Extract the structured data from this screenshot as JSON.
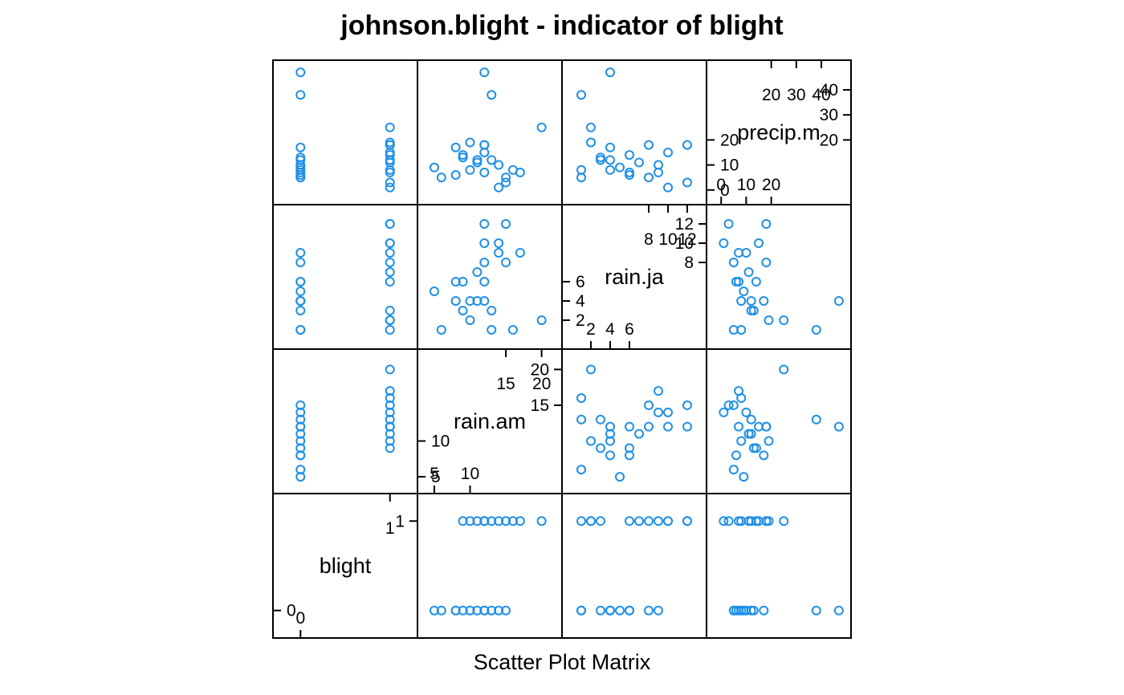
{
  "chart_data": {
    "type": "scatter",
    "title": "johnson.blight - indicator of blight",
    "xlabel": "Scatter Plot Matrix",
    "variables": [
      {
        "name": "blight",
        "label": "blight",
        "range": [
          -0.2,
          1.2
        ],
        "ticks": {
          "low": [
            "0"
          ],
          "high": [
            "1"
          ]
        }
      },
      {
        "name": "rain.am",
        "label": "rain.am",
        "range": [
          4,
          21.5
        ],
        "ticks": {
          "low": [
            "5",
            "10"
          ],
          "high": [
            "15",
            "20"
          ]
        }
      },
      {
        "name": "rain.ja",
        "label": "rain.ja",
        "range": [
          0,
          13
        ],
        "ticks": {
          "low": [
            "2",
            "4",
            "6"
          ],
          "high": [
            "8",
            "10",
            "12"
          ]
        }
      },
      {
        "name": "precip.m",
        "label": "precip.m",
        "range": [
          -2,
          48
        ],
        "ticks": {
          "low": [
            "0",
            "10",
            "20"
          ],
          "high": [
            "20",
            "30",
            "40"
          ]
        }
      }
    ],
    "observations": [
      {
        "blight": 0,
        "rain.am": 5,
        "rain.ja": 5,
        "precip.m": 9
      },
      {
        "blight": 0,
        "rain.am": 6,
        "rain.ja": 1,
        "precip.m": 5
      },
      {
        "blight": 0,
        "rain.am": 8,
        "rain.ja": 4,
        "precip.m": 17
      },
      {
        "blight": 0,
        "rain.am": 8,
        "rain.ja": 6,
        "precip.m": 6
      },
      {
        "blight": 0,
        "rain.am": 9,
        "rain.ja": 3,
        "precip.m": 13
      },
      {
        "blight": 0,
        "rain.am": 10,
        "rain.ja": 4,
        "precip.m": 8
      },
      {
        "blight": 0,
        "rain.am": 11,
        "rain.ja": 4,
        "precip.m": 12
      },
      {
        "blight": 0,
        "rain.am": 12,
        "rain.ja": 4,
        "precip.m": 47
      },
      {
        "blight": 0,
        "rain.am": 12,
        "rain.ja": 6,
        "precip.m": 7
      },
      {
        "blight": 0,
        "rain.am": 13,
        "rain.ja": 1,
        "precip.m": 38
      },
      {
        "blight": 0,
        "rain.am": 14,
        "rain.ja": 9,
        "precip.m": 10
      },
      {
        "blight": 0,
        "rain.am": 15,
        "rain.ja": 8,
        "precip.m": 5
      },
      {
        "blight": 1,
        "rain.am": 9,
        "rain.ja": 6,
        "precip.m": 14
      },
      {
        "blight": 1,
        "rain.am": 10,
        "rain.ja": 2,
        "precip.m": 19
      },
      {
        "blight": 1,
        "rain.am": 11,
        "rain.ja": 7,
        "precip.m": 11
      },
      {
        "blight": 1,
        "rain.am": 12,
        "rain.ja": 10,
        "precip.m": 15
      },
      {
        "blight": 1,
        "rain.am": 15,
        "rain.ja": 12,
        "precip.m": 3
      },
      {
        "blight": 1,
        "rain.am": 16,
        "rain.ja": 1,
        "precip.m": 8
      },
      {
        "blight": 1,
        "rain.am": 17,
        "rain.ja": 9,
        "precip.m": 7
      },
      {
        "blight": 1,
        "rain.am": 20,
        "rain.ja": 2,
        "precip.m": 25
      },
      {
        "blight": 1,
        "rain.am": 12,
        "rain.ja": 12,
        "precip.m": 18
      },
      {
        "blight": 1,
        "rain.am": 13,
        "rain.ja": 3,
        "precip.m": 12
      },
      {
        "blight": 1,
        "rain.am": 14,
        "rain.ja": 10,
        "precip.m": 1
      },
      {
        "blight": 1,
        "rain.am": 12,
        "rain.ja": 8,
        "precip.m": 18
      }
    ],
    "point_color": "#1f8fe6",
    "grid": false,
    "legend": "none"
  }
}
